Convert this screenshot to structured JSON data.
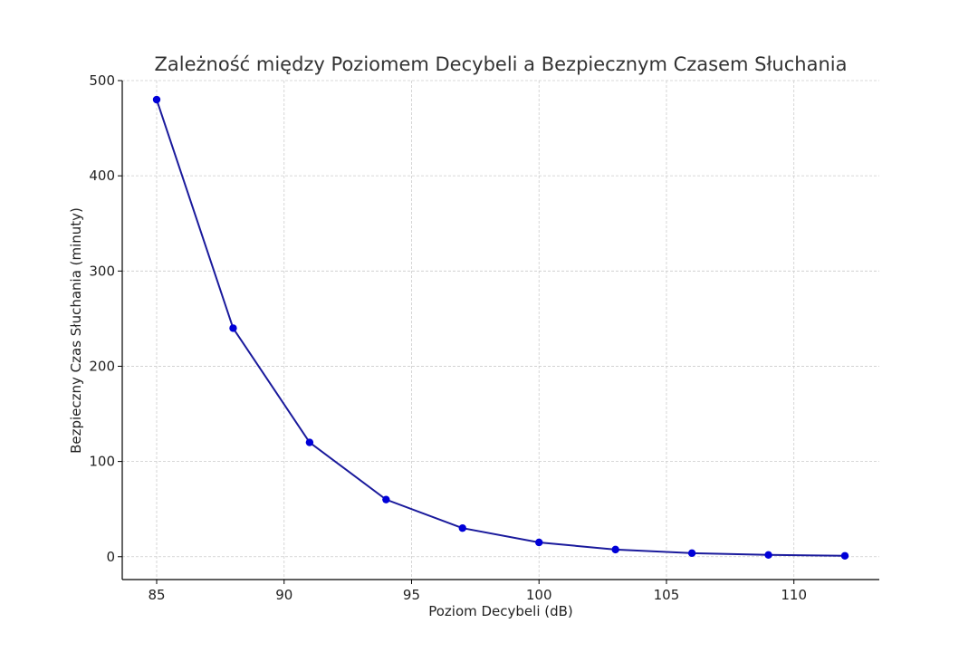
{
  "chart_data": {
    "type": "line",
    "title": "Zależność między Poziomem Decybeli a Bezpiecznym Czasem Słuchania",
    "xlabel": "Poziom Decybeli (dB)",
    "ylabel": "Bezpieczny Czas Słuchania (minuty)",
    "x": [
      85,
      88,
      91,
      94,
      97,
      100,
      103,
      106,
      109,
      112
    ],
    "y": [
      480,
      240,
      120,
      60,
      30,
      15,
      7.5,
      3.75,
      1.875,
      0.94
    ],
    "xlim": [
      83.65,
      113.35
    ],
    "ylim": [
      -24,
      500
    ],
    "xticks": [
      85,
      90,
      95,
      100,
      105,
      110
    ],
    "yticks": [
      0,
      100,
      200,
      300,
      400,
      500
    ],
    "grid": true,
    "line_color": "#1a1a9c",
    "marker_color": "#0000d8"
  }
}
